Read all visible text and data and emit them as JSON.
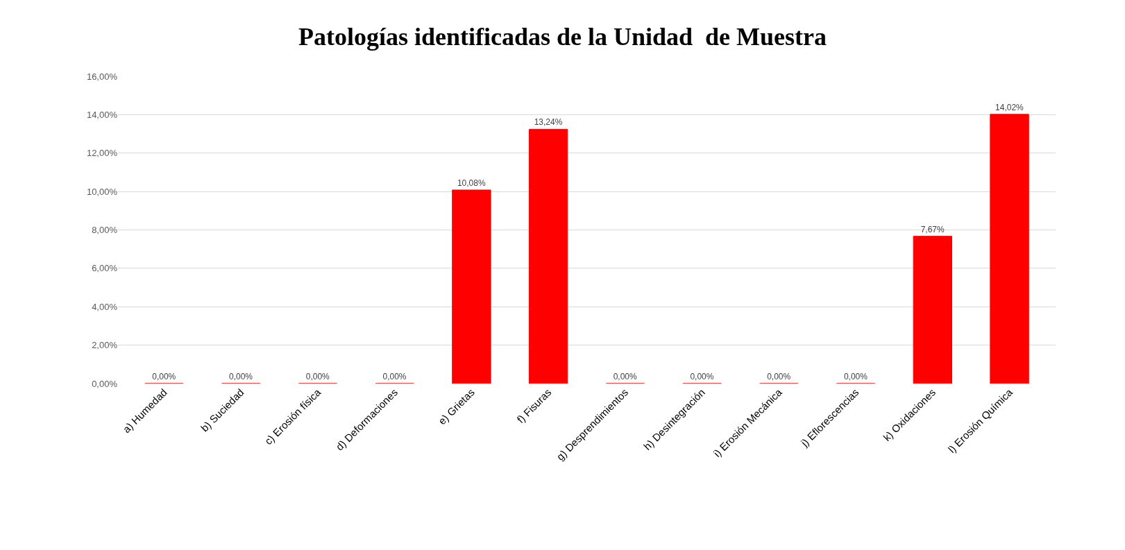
{
  "chart_data": {
    "type": "bar",
    "title": "Patologías identificadas de la Unidad  de Muestra",
    "categories": [
      "a) Humedad",
      "b) Suciedad",
      "c) Erosión física",
      "d) Deformaciones",
      "e) Grietas",
      "f) Fisuras",
      "g) Desprendimientos",
      "h) Desintegración",
      "i) Erosión Mecánica",
      "j) Eflorescencias",
      "k) Oxidaciones",
      "l) Erosión Química"
    ],
    "values": [
      0,
      0,
      0,
      0,
      10.08,
      13.24,
      0,
      0,
      0,
      0,
      7.67,
      14.02
    ],
    "value_labels": [
      "0,00%",
      "0,00%",
      "0,00%",
      "0,00%",
      "10,08%",
      "13,24%",
      "0,00%",
      "0,00%",
      "0,00%",
      "0,00%",
      "7,67%",
      "14,02%"
    ],
    "color": "#ff0000",
    "ylim": [
      0,
      16
    ],
    "yticks": [
      {
        "value": 0,
        "label": "0,00%"
      },
      {
        "value": 2,
        "label": "2,00%"
      },
      {
        "value": 4,
        "label": "4,00%"
      },
      {
        "value": 6,
        "label": "6,00%"
      },
      {
        "value": 8,
        "label": "8,00%"
      },
      {
        "value": 10,
        "label": "10,00%"
      },
      {
        "value": 12,
        "label": "12,00%"
      },
      {
        "value": 14,
        "label": "14,00%"
      },
      {
        "value": 16,
        "label": "16,00%"
      }
    ],
    "grid": "y",
    "legend": false
  }
}
